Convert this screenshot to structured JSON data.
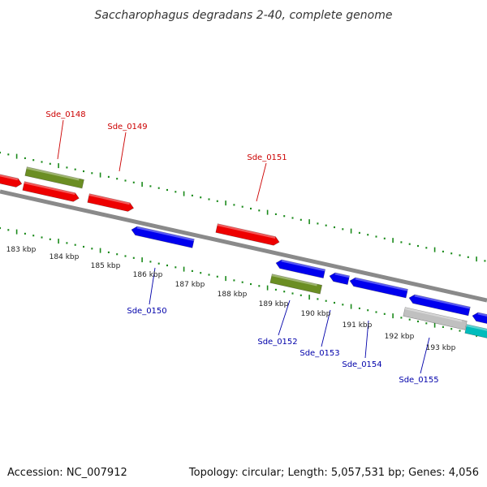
{
  "title": "Saccharophagus degradans 2-40, complete genome",
  "footer": {
    "accession": "Accession: NC_007912",
    "summary": "Topology: circular; Length: 5,057,531 bp; Genes: 4,056"
  },
  "colors": {
    "forward": "#ee0000",
    "reverse": "#0000ee",
    "olive": "#6b8e23",
    "teal": "#00bcbc",
    "gray": "#c0c0c0",
    "backbone": "#8a8a8a",
    "tick": "#1a8a1a",
    "forward_label": "#cc0000",
    "reverse_label": "#0000aa"
  },
  "scale_labels": [
    "183 kbp",
    "184 kbp",
    "185 kbp",
    "186 kbp",
    "187 kbp",
    "188 kbp",
    "189 kbp",
    "190 kbp",
    "191 kbp",
    "192 kbp",
    "193 kbp"
  ],
  "gene_labels_top": [
    "Sde_0148",
    "Sde_0149",
    "Sde_0151"
  ],
  "gene_labels_bottom": [
    "Sde_0150",
    "Sde_0152",
    "Sde_0153",
    "Sde_0154",
    "Sde_0155"
  ]
}
